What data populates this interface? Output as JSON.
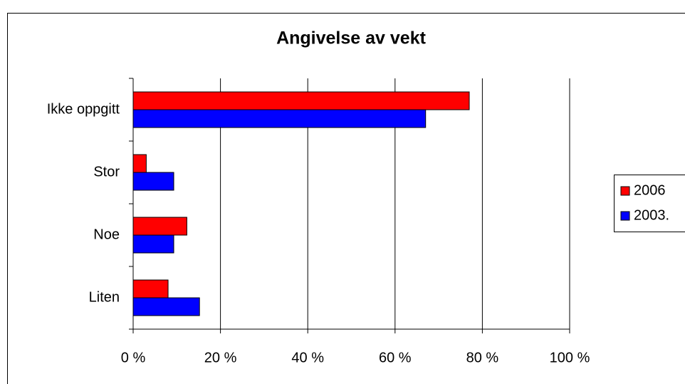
{
  "chart_data": {
    "type": "hbar",
    "title": "Angivelse av vekt",
    "categories": [
      "Ikke oppgitt",
      "Stor",
      "Noe",
      "Liten"
    ],
    "series": [
      {
        "name": "2006",
        "color": "#ff0000",
        "values": [
          77,
          3,
          12.3,
          8
        ]
      },
      {
        "name": "2003.",
        "color": "#0000ff",
        "values": [
          67,
          9.3,
          9.3,
          15.2
        ]
      }
    ],
    "xlim": [
      0,
      100
    ],
    "xticks": [
      {
        "value": 0,
        "label": "0 %"
      },
      {
        "value": 20,
        "label": "20 %"
      },
      {
        "value": 40,
        "label": "40 %"
      },
      {
        "value": 60,
        "label": "60 %"
      },
      {
        "value": 80,
        "label": "80 %"
      },
      {
        "value": 100,
        "label": "100 %"
      }
    ],
    "grid": true,
    "legend": "right"
  }
}
